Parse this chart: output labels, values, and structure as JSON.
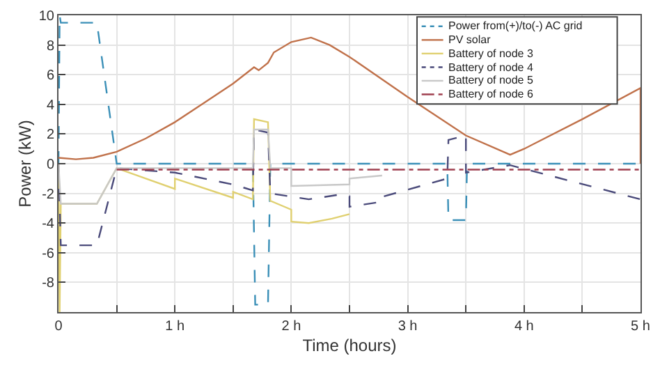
{
  "chart_data": {
    "type": "line",
    "xlabel": "Time (hours)",
    "ylabel": "Power (kW)",
    "xlim": [
      0,
      5
    ],
    "ylim": [
      -10,
      10
    ],
    "xticks": [
      {
        "value": 0,
        "label": "0"
      },
      {
        "value": 0.5,
        "label": null
      },
      {
        "value": 1,
        "label": "1 h"
      },
      {
        "value": 1.5,
        "label": null
      },
      {
        "value": 2,
        "label": "2 h"
      },
      {
        "value": 2.5,
        "label": null
      },
      {
        "value": 3,
        "label": "3 h"
      },
      {
        "value": 3.5,
        "label": null
      },
      {
        "value": 4,
        "label": "4 h"
      },
      {
        "value": 4.5,
        "label": null
      },
      {
        "value": 5,
        "label": "5 h"
      }
    ],
    "yticks": [
      {
        "value": -10,
        "label": null
      },
      -8,
      -6,
      -4,
      -2,
      0,
      2,
      4,
      6,
      8,
      10
    ],
    "grid": true,
    "legend": "top right",
    "series": [
      {
        "name": "Power from(+)/to(-) AC grid",
        "color": "#3a8fb7",
        "line_style": "dashed",
        "x": [
          0,
          0.01,
          0.02,
          0.33,
          0.5,
          1.67,
          1.69,
          1.8,
          1.82,
          3.34,
          3.35,
          3.5,
          3.51,
          5
        ],
        "values": [
          0,
          10,
          9.5,
          9.5,
          0,
          0,
          -9.5,
          -9.5,
          0,
          0,
          -3.8,
          -3.8,
          0,
          0
        ]
      },
      {
        "name": "PV solar",
        "color": "#c0714a",
        "line_style": "solid",
        "x": [
          0,
          0.15,
          0.3,
          0.5,
          0.75,
          1.0,
          1.25,
          1.5,
          1.68,
          1.72,
          1.8,
          1.85,
          2.0,
          2.17,
          2.33,
          2.5,
          3.0,
          3.5,
          3.88,
          4.0,
          4.5,
          5.0,
          5.0
        ],
        "values": [
          0.4,
          0.3,
          0.4,
          0.8,
          1.7,
          2.8,
          4.1,
          5.4,
          6.5,
          6.3,
          6.8,
          7.5,
          8.2,
          8.5,
          8.0,
          7.2,
          4.5,
          1.9,
          0.6,
          1.0,
          3.0,
          5.1,
          0
        ]
      },
      {
        "name": "Battery of node 3",
        "color": "#e0d070",
        "line_style": "solid",
        "x": [
          0,
          0.01,
          0.02,
          0.33,
          0.5,
          1.0,
          1.0,
          1.5,
          1.5,
          1.67,
          1.68,
          1.8,
          1.82,
          2.0,
          2.0,
          2.15,
          2.35,
          2.5
        ],
        "values": [
          0,
          -10,
          -2.7,
          -2.7,
          -0.3,
          -1.7,
          -1.0,
          -2.3,
          -1.9,
          -2.4,
          3.0,
          2.8,
          -2.5,
          -3.1,
          -3.9,
          -4.0,
          -3.7,
          -3.4
        ]
      },
      {
        "name": "Battery of node 4",
        "color": "#4a4a7a",
        "line_style": "dashed",
        "x": [
          0,
          0.02,
          0.33,
          0.5,
          1.0,
          1.5,
          1.67,
          1.68,
          1.8,
          1.82,
          2.15,
          2.4,
          2.5,
          2.5,
          2.75,
          2.75,
          3.34,
          3.35,
          3.5,
          3.5,
          3.88,
          5.0
        ],
        "values": [
          0,
          -5.5,
          -5.5,
          -0.3,
          -0.6,
          -1.4,
          -1.8,
          2.3,
          2.1,
          -2.0,
          -2.4,
          -2.1,
          -2.2,
          -2.9,
          -2.6,
          -2.3,
          -1.0,
          1.6,
          1.9,
          -0.6,
          -0.1,
          -2.4
        ]
      },
      {
        "name": "Battery of node 5",
        "color": "#c8c8c8",
        "line_style": "solid",
        "x": [
          0,
          0.02,
          0.33,
          0.5,
          1.67,
          1.68,
          1.8,
          1.82,
          2.0,
          2.0,
          2.5,
          2.5,
          2.78
        ],
        "values": [
          0,
          -2.7,
          -2.7,
          -0.3,
          -0.3,
          2.3,
          2.3,
          -0.3,
          -0.3,
          -1.5,
          -1.4,
          -1.0,
          -0.8
        ]
      },
      {
        "name": "Battery of node 6",
        "color": "#a04050",
        "line_style": "dotted",
        "x": [
          0.5,
          5.0
        ],
        "values": [
          -0.4,
          -0.4
        ]
      }
    ]
  }
}
